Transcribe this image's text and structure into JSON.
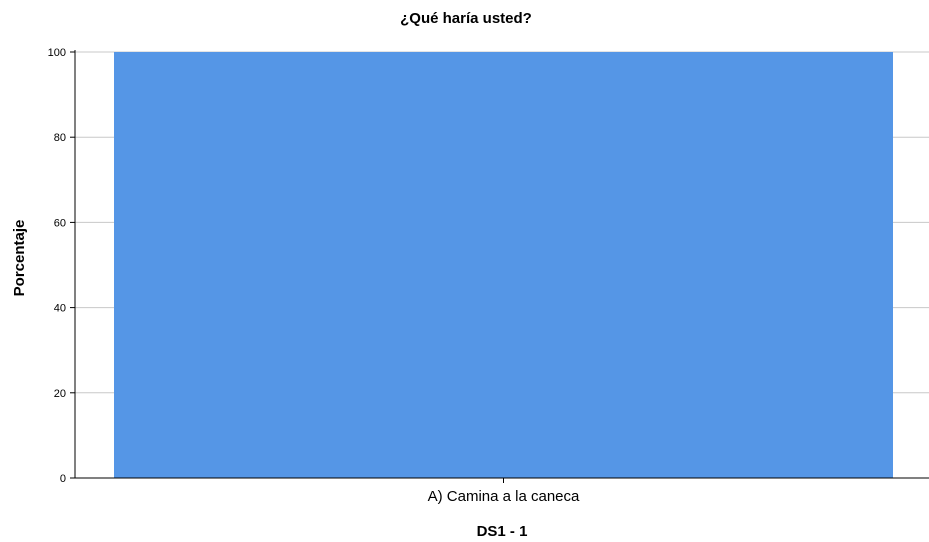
{
  "chart_data": {
    "type": "bar",
    "title": "¿Qué haría usted?",
    "xlabel": "DS1 - 1",
    "ylabel": "Porcentaje",
    "categories": [
      "A) Camina a la caneca"
    ],
    "values": [
      100
    ],
    "ylim": [
      0,
      100
    ],
    "yticks": [
      0,
      20,
      40,
      60,
      80,
      100
    ],
    "grid": true,
    "bar_color": "#5596e6",
    "grid_color": "#c8c8c8",
    "axis_color": "#000000"
  }
}
